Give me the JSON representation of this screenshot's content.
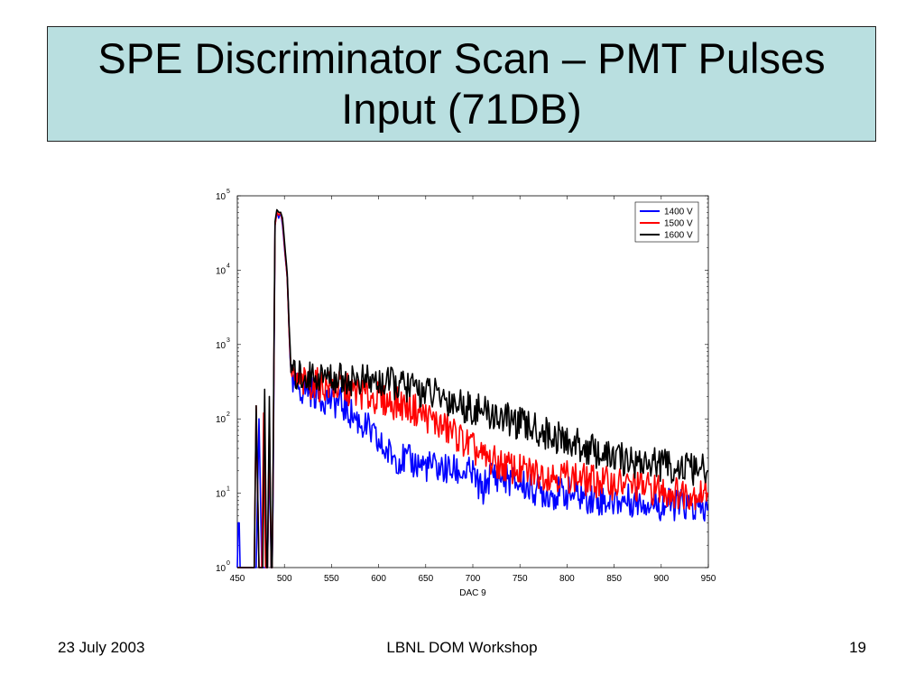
{
  "slide": {
    "title": "SPE Discriminator Scan – PMT Pulses Input (71DB)",
    "footer_left": "23 July 2003",
    "footer_center": "LBNL DOM Workshop",
    "footer_right": "19",
    "title_bg": "#b9dfe0"
  },
  "chart_data": {
    "type": "line",
    "title": "",
    "xlabel": "DAC 9",
    "ylabel": "",
    "xlim": [
      450,
      950
    ],
    "ylim": [
      1,
      100000
    ],
    "yscale": "log",
    "x_ticks": [
      "450",
      "500",
      "550",
      "600",
      "650",
      "700",
      "750",
      "800",
      "850",
      "900",
      "950"
    ],
    "y_ticks": [
      {
        "base": "10",
        "exp": "0"
      },
      {
        "base": "10",
        "exp": "1"
      },
      {
        "base": "10",
        "exp": "2"
      },
      {
        "base": "10",
        "exp": "3"
      },
      {
        "base": "10",
        "exp": "4"
      },
      {
        "base": "10",
        "exp": "5"
      }
    ],
    "legend_position": "top-right",
    "grid": false,
    "series": [
      {
        "name": "1400 V",
        "color": "#0000ff",
        "points": [
          [
            450,
            1
          ],
          [
            451,
            4
          ],
          [
            452,
            4
          ],
          [
            453,
            1
          ],
          [
            455,
            1
          ],
          [
            470,
            1
          ],
          [
            473,
            100
          ],
          [
            476,
            1
          ],
          [
            478,
            1
          ],
          [
            482,
            1
          ],
          [
            484,
            40
          ],
          [
            486,
            1
          ],
          [
            487,
            1
          ],
          [
            488,
            10
          ],
          [
            490,
            40000
          ],
          [
            492,
            60000
          ],
          [
            494,
            50000
          ],
          [
            496,
            60000
          ],
          [
            498,
            40000
          ],
          [
            500,
            20000
          ],
          [
            503,
            8000
          ],
          [
            505,
            1500
          ],
          [
            507,
            300
          ],
          [
            510,
            250
          ],
          [
            515,
            280
          ],
          [
            520,
            240
          ],
          [
            525,
            250
          ],
          [
            530,
            230
          ],
          [
            540,
            200
          ],
          [
            550,
            180
          ],
          [
            560,
            160
          ],
          [
            570,
            120
          ],
          [
            580,
            90
          ],
          [
            590,
            70
          ],
          [
            600,
            45
          ],
          [
            610,
            35
          ],
          [
            620,
            30
          ],
          [
            640,
            25
          ],
          [
            660,
            22
          ],
          [
            680,
            20
          ],
          [
            700,
            18
          ],
          [
            710,
            10
          ],
          [
            715,
            15
          ],
          [
            720,
            18
          ],
          [
            740,
            15
          ],
          [
            760,
            12
          ],
          [
            780,
            10
          ],
          [
            800,
            10
          ],
          [
            820,
            9
          ],
          [
            840,
            8
          ],
          [
            860,
            8
          ],
          [
            880,
            8
          ],
          [
            900,
            7
          ],
          [
            920,
            7
          ],
          [
            940,
            6
          ],
          [
            950,
            6
          ]
        ]
      },
      {
        "name": "1500 V",
        "color": "#ff0000",
        "points": [
          [
            450,
            1
          ],
          [
            468,
            1
          ],
          [
            470,
            150
          ],
          [
            473,
            1
          ],
          [
            476,
            1
          ],
          [
            478,
            120
          ],
          [
            480,
            1
          ],
          [
            482,
            1
          ],
          [
            484,
            100
          ],
          [
            486,
            1
          ],
          [
            487,
            1
          ],
          [
            488,
            20
          ],
          [
            490,
            40000
          ],
          [
            492,
            60000
          ],
          [
            494,
            55000
          ],
          [
            496,
            60000
          ],
          [
            498,
            45000
          ],
          [
            500,
            22000
          ],
          [
            503,
            8000
          ],
          [
            505,
            1500
          ],
          [
            507,
            400
          ],
          [
            510,
            320
          ],
          [
            520,
            300
          ],
          [
            530,
            300
          ],
          [
            540,
            280
          ],
          [
            550,
            270
          ],
          [
            560,
            260
          ],
          [
            570,
            240
          ],
          [
            580,
            220
          ],
          [
            590,
            200
          ],
          [
            600,
            190
          ],
          [
            610,
            170
          ],
          [
            620,
            160
          ],
          [
            630,
            150
          ],
          [
            640,
            130
          ],
          [
            650,
            110
          ],
          [
            660,
            90
          ],
          [
            670,
            75
          ],
          [
            680,
            65
          ],
          [
            690,
            50
          ],
          [
            700,
            40
          ],
          [
            710,
            30
          ],
          [
            720,
            27
          ],
          [
            730,
            24
          ],
          [
            740,
            22
          ],
          [
            750,
            20
          ],
          [
            760,
            19
          ],
          [
            780,
            18
          ],
          [
            800,
            17
          ],
          [
            820,
            15
          ],
          [
            840,
            14
          ],
          [
            860,
            13
          ],
          [
            880,
            12
          ],
          [
            900,
            11
          ],
          [
            920,
            10
          ],
          [
            940,
            10
          ],
          [
            950,
            10
          ]
        ]
      },
      {
        "name": "1600 V",
        "color": "#000000",
        "points": [
          [
            450,
            1
          ],
          [
            465,
            1
          ],
          [
            468,
            1
          ],
          [
            470,
            150
          ],
          [
            473,
            1
          ],
          [
            477,
            1
          ],
          [
            479,
            250
          ],
          [
            481,
            1
          ],
          [
            482,
            1
          ],
          [
            484,
            200
          ],
          [
            486,
            1
          ],
          [
            487,
            1
          ],
          [
            488,
            30
          ],
          [
            490,
            45000
          ],
          [
            492,
            65000
          ],
          [
            494,
            60000
          ],
          [
            496,
            60000
          ],
          [
            498,
            50000
          ],
          [
            500,
            25000
          ],
          [
            503,
            9000
          ],
          [
            505,
            1800
          ],
          [
            507,
            500
          ],
          [
            510,
            380
          ],
          [
            520,
            380
          ],
          [
            530,
            380
          ],
          [
            540,
            370
          ],
          [
            550,
            360
          ],
          [
            560,
            350
          ],
          [
            570,
            340
          ],
          [
            580,
            330
          ],
          [
            590,
            320
          ],
          [
            600,
            310
          ],
          [
            610,
            300
          ],
          [
            620,
            290
          ],
          [
            630,
            270
          ],
          [
            640,
            250
          ],
          [
            650,
            230
          ],
          [
            660,
            210
          ],
          [
            670,
            190
          ],
          [
            680,
            170
          ],
          [
            690,
            150
          ],
          [
            700,
            140
          ],
          [
            710,
            125
          ],
          [
            720,
            115
          ],
          [
            730,
            105
          ],
          [
            740,
            95
          ],
          [
            750,
            85
          ],
          [
            760,
            78
          ],
          [
            770,
            70
          ],
          [
            780,
            62
          ],
          [
            790,
            55
          ],
          [
            800,
            50
          ],
          [
            810,
            45
          ],
          [
            820,
            40
          ],
          [
            830,
            36
          ],
          [
            840,
            32
          ],
          [
            850,
            30
          ],
          [
            860,
            28
          ],
          [
            870,
            27
          ],
          [
            880,
            26
          ],
          [
            890,
            25
          ],
          [
            900,
            24
          ],
          [
            910,
            23
          ],
          [
            920,
            22
          ],
          [
            930,
            21
          ],
          [
            940,
            20
          ],
          [
            950,
            20
          ]
        ]
      }
    ]
  }
}
